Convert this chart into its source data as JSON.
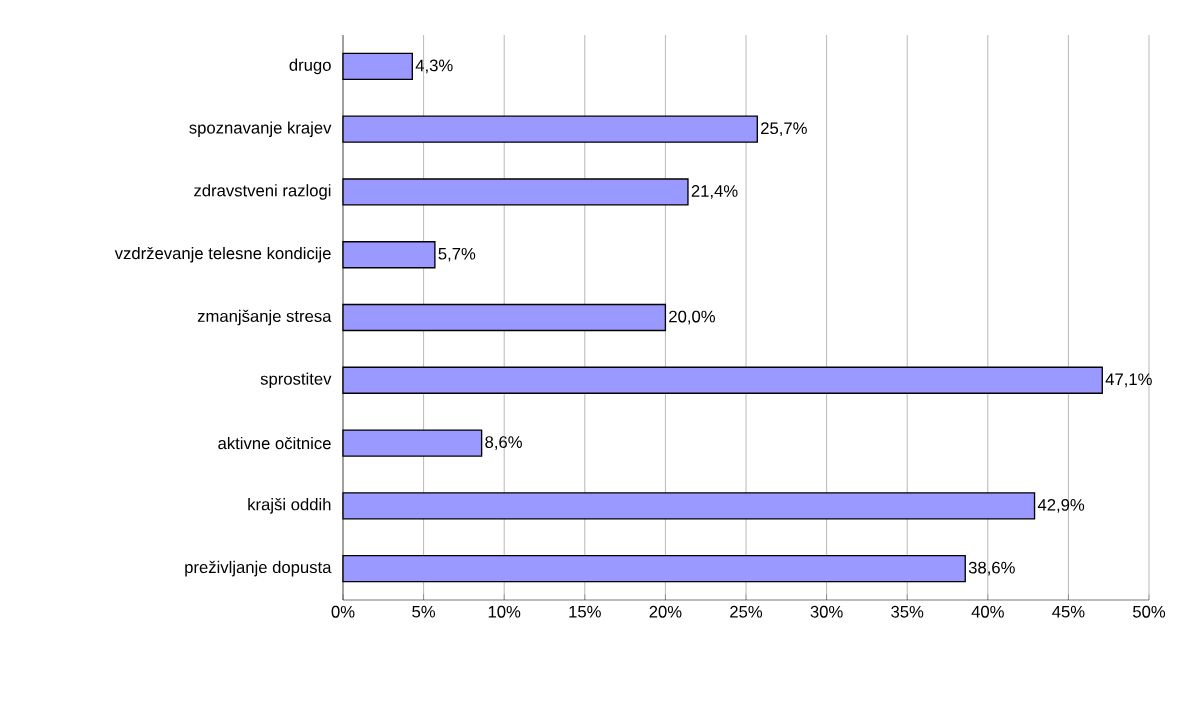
{
  "chart_data": {
    "type": "bar",
    "orientation": "horizontal",
    "categories": [
      "drugo",
      "spoznavanje krajev",
      "zdravstveni razlogi",
      "vzdrževanje telesne kondicije",
      "zmanjšanje stresa",
      "sprostitev",
      "aktivne očitnice",
      "krajši oddih",
      "preživljanje dopusta"
    ],
    "values": [
      4.3,
      25.7,
      21.4,
      5.7,
      20.0,
      47.1,
      8.6,
      42.9,
      38.6
    ],
    "value_labels": [
      "4,3%",
      "25,7%",
      "21,4%",
      "5,7%",
      "20,0%",
      "47,1%",
      "8,6%",
      "42,9%",
      "38,6%"
    ],
    "color": "#9999ff",
    "xlim": [
      0,
      50
    ],
    "xticks": [
      {
        "value": 0,
        "label": "0%"
      },
      {
        "value": 5,
        "label": "5%"
      },
      {
        "value": 10,
        "label": "10%"
      },
      {
        "value": 15,
        "label": "15%"
      },
      {
        "value": 20,
        "label": "20%"
      },
      {
        "value": 25,
        "label": "25%"
      },
      {
        "value": 30,
        "label": "30%"
      },
      {
        "value": 35,
        "label": "35%"
      },
      {
        "value": 40,
        "label": "40%"
      },
      {
        "value": 45,
        "label": "45%"
      },
      {
        "value": 50,
        "label": "50%"
      }
    ],
    "grid": "x"
  }
}
